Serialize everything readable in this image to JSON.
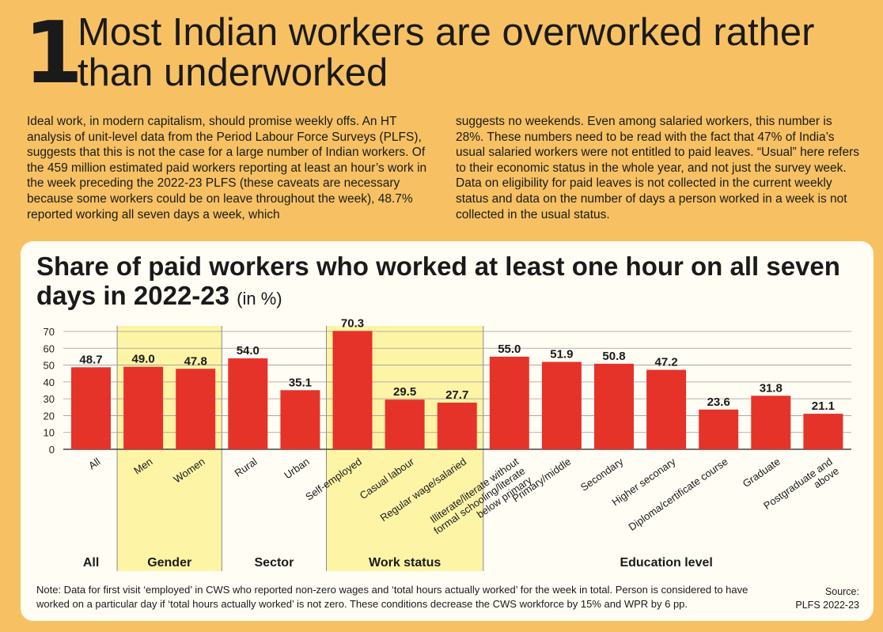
{
  "header": {
    "number": "1",
    "headline": "Most Indian workers are overworked rather than underworked"
  },
  "body_text": {
    "col1": "Ideal work, in modern capitalism, should promise weekly offs. An HT analysis of unit-level data from the Period Labour Force Surveys (PLFS), suggests that this is not the case for a large number of Indian workers. Of the 459 million estimated paid workers reporting at least an hour’s work in the week preceding the 2022-23 PLFS (these caveats are necessary because some workers could be on leave throughout the week), 48.7% reported working all seven days a week, which",
    "col2": "suggests no weekends. Even among salaried workers, this number is 28%. These numbers need to be read with the fact that 47% of India’s usual salaried workers were not entitled to paid leaves. “Usual” here refers to their economic status in the whole year, and not just the survey week. Data on eligibility for paid leaves is not collected in the current weekly status and data on the number of days a person worked in a week is not collected in the usual status."
  },
  "chart_title": {
    "main": "Share of paid workers who worked at least one hour on all seven days in 2022-23",
    "unit": "(in %)"
  },
  "chart_data": {
    "type": "bar",
    "title": "Share of paid workers who worked at least one hour on all seven days in 2022-23",
    "unit": "(in %)",
    "ylim": [
      0,
      70
    ],
    "yticks": [
      0,
      10,
      20,
      30,
      40,
      50,
      60,
      70
    ],
    "grid": true,
    "categories": [
      "All",
      "Men",
      "Women",
      "Rural",
      "Urban",
      "Self-employed",
      "Casual labour",
      "Regular wage/salaried",
      "Illiterate/literate without formal schooling/literate below primary",
      "Primary/middle",
      "Secondary",
      "Higher seconary",
      "Diploma/certificate course",
      "Graduate",
      "Postgraduate and above"
    ],
    "tick_labels": [
      [
        "All"
      ],
      [
        "Men"
      ],
      [
        "Women"
      ],
      [
        "Rural"
      ],
      [
        "Urban"
      ],
      [
        "Self-employed"
      ],
      [
        "Casual labour"
      ],
      [
        "Regular wage/salaried"
      ],
      [
        "Illiterate/literate without",
        "formal schooling/literate",
        "below primary"
      ],
      [
        "Primary/middle"
      ],
      [
        "Secondary"
      ],
      [
        "Higher seconary"
      ],
      [
        "Diploma/certificate course"
      ],
      [
        "Graduate"
      ],
      [
        "Postgraduate and",
        "above"
      ]
    ],
    "values": [
      48.7,
      49.0,
      47.8,
      54.0,
      35.1,
      70.3,
      29.5,
      27.7,
      55.0,
      51.9,
      50.8,
      47.2,
      23.6,
      31.8,
      21.1
    ],
    "value_labels": [
      "48.7",
      "49.0",
      "47.8",
      "54.0",
      "35.1",
      "70.3",
      "29.5",
      "27.7",
      "55.0",
      "51.9",
      "50.8",
      "47.2",
      "23.6",
      "31.8",
      "21.1"
    ],
    "groups": [
      {
        "name": "All",
        "start": 0,
        "end": 0,
        "highlight": false
      },
      {
        "name": "Gender",
        "start": 1,
        "end": 2,
        "highlight": true
      },
      {
        "name": "Sector",
        "start": 3,
        "end": 4,
        "highlight": false
      },
      {
        "name": "Work status",
        "start": 5,
        "end": 7,
        "highlight": true
      },
      {
        "name": "Education level",
        "start": 8,
        "end": 14,
        "highlight": false
      }
    ],
    "colors": {
      "bar": "#e5332a",
      "highlight": "#fdf4a6",
      "grid": "#9a9a9a"
    }
  },
  "footer": {
    "note": "Note: Data for first visit ‘employed’ in CWS who reported non-zero wages and ‘total hours actually worked’ for the week in total. Person is considered to have worked on a particular day if ‘total hours actually worked’ is not zero. These conditions decrease the CWS workforce by 15% and WPR by 6 pp.",
    "source_label": "Source:",
    "source": "PLFS 2022-23"
  }
}
